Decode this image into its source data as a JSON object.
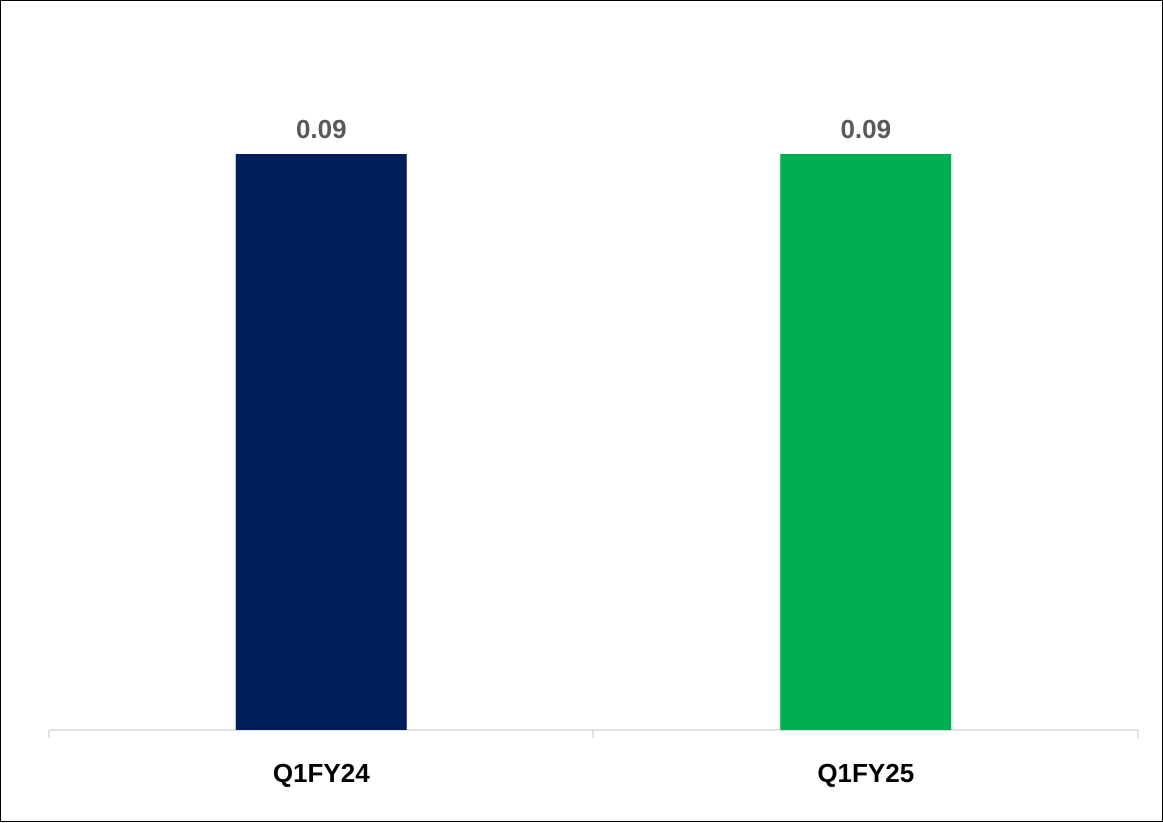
{
  "chart_data": {
    "type": "bar",
    "categories": [
      "Q1FY24",
      "Q1FY25"
    ],
    "values": [
      0.09,
      0.09
    ],
    "value_labels": [
      "0.09",
      "0.09"
    ],
    "colors": [
      "#001f5b",
      "#00b050"
    ],
    "title": "",
    "xlabel": "",
    "ylabel": "",
    "ylim": [
      0,
      0.1
    ],
    "grid": false,
    "legend": "none"
  }
}
